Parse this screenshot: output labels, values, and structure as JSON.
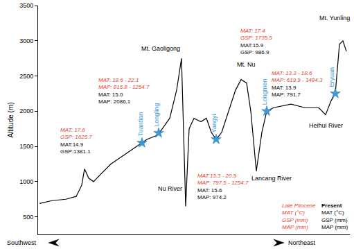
{
  "chart_data": {
    "type": "line",
    "y_label": "Altitude (m)",
    "x": [
      2,
      20,
      40,
      55,
      63,
      67,
      73,
      80,
      90,
      105,
      120,
      135,
      150,
      157,
      170,
      177,
      190,
      200,
      207,
      213,
      218,
      225,
      235,
      243,
      250,
      257,
      265,
      275,
      285,
      293,
      301,
      307,
      315,
      323,
      330,
      340,
      365,
      385,
      405,
      415,
      423,
      429,
      435,
      440,
      445
    ],
    "values": [
      690,
      730,
      750,
      790,
      950,
      1180,
      1050,
      1000,
      1100,
      1250,
      1350,
      1450,
      1550,
      1600,
      1650,
      1720,
      1900,
      2300,
      2750,
      650,
      1750,
      1900,
      1850,
      1900,
      1700,
      1600,
      1700,
      2000,
      2300,
      2450,
      2400,
      2000,
      1150,
      1700,
      2000,
      2050,
      2100,
      2050,
      2050,
      1950,
      2150,
      2250,
      2950,
      3000,
      2850
    ],
    "color": "#000000",
    "xlim": [
      0,
      450
    ],
    "ylim": [
      250,
      3500
    ],
    "yticks": [
      500,
      1000,
      1500,
      2000,
      2500,
      3000,
      3500
    ],
    "grid": false,
    "tick_labels": "y",
    "sites": {
      "names": [
        "Tuantian",
        "Longling",
        "Yangyi",
        "Longmen",
        "Eryuan"
      ],
      "x": [
        150,
        174,
        257,
        330,
        429
      ],
      "values": [
        1550,
        1690,
        1600,
        2000,
        2250
      ],
      "color": "#3d9ad6",
      "marker": "star"
    },
    "labels": [
      {
        "text": "Mt. Gaoligong",
        "x": 177,
        "y": 2886
      },
      {
        "text": "Nu River",
        "x": 190,
        "y": 900
      },
      {
        "text": "Mt. Nu",
        "x": 300,
        "y": 2659
      },
      {
        "text": "Lancang River",
        "x": 337,
        "y": 1050
      },
      {
        "text": "Heihui River",
        "x": 415,
        "y": 1800
      },
      {
        "text": "Mt. Yunling",
        "x": 428,
        "y": 3322
      }
    ],
    "climate_blocks": [
      {
        "x": 30,
        "y": 1800,
        "late_pliocene": [
          "MAT: 17.6",
          "GSP: 1625.7"
        ],
        "present": [
          "MAT:14.9",
          "GSP:1381.1"
        ]
      },
      {
        "x": 85,
        "y": 2510,
        "late_pliocene": [
          "MAT: 18.6 - 22.1",
          "MAP: 815.8 - 1254.7"
        ],
        "present": [
          "MAT: 15.0",
          "MAP: 2086.1"
        ]
      },
      {
        "x": 228,
        "y": 1150,
        "late_pliocene": [
          "MAT:13.3 - 20.9",
          "MAP: 797.5 - 1254.7"
        ],
        "present": [
          "MAT: 15.6",
          "MAP: 974.2"
        ]
      },
      {
        "x": 290,
        "y": 3200,
        "late_pliocene": [
          "MAT: 17.4",
          "GSP: 1735.5"
        ],
        "present": [
          "MAT:15.9",
          "GSP: 986.9"
        ]
      },
      {
        "x": 335,
        "y": 2600,
        "late_pliocene": [
          "MAT: 13.3 - 18.6",
          "MAP: 619.9 - 1484.3"
        ],
        "present": [
          "MAT: 13.9",
          "MAP: 791.7"
        ]
      }
    ],
    "key": {
      "late_pliocene": {
        "color": "#e8412c",
        "labels": [
          "Late Pliocene",
          "MAT (°C)",
          "GSP (mm)",
          "MAP (mm)"
        ]
      },
      "present": {
        "color": "#000000",
        "labels": [
          "Present",
          "MAT (°C)",
          "GSP (mm)",
          "MAP (mm)"
        ]
      }
    },
    "direction_labels": [
      "Southwest",
      "Northeast"
    ]
  }
}
